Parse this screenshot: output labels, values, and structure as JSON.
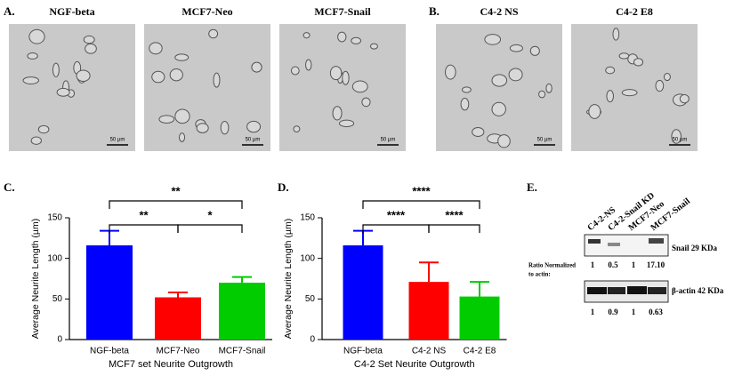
{
  "figure": {
    "panel_a": "A.",
    "panel_b": "B.",
    "panel_c": "C.",
    "panel_d": "D.",
    "panel_e": "E.",
    "images": [
      "NGF-beta",
      "MCF7-Neo",
      "MCF7-Snail",
      "C4-2 NS",
      "C4-2 E8"
    ],
    "scale_bar": "50 µm",
    "blot": {
      "lanes": [
        "C4-2-NS",
        "C4-2-Snail KD",
        "MCF7-Neo",
        "MCF7-Snail"
      ],
      "snail_label": "Snail 29 KDa",
      "actin_label": "β-actin 42 KDa",
      "ratio_label": [
        "Ratio Normalized",
        "to actin:"
      ],
      "snail_ratios": [
        "1",
        "0.5",
        "1",
        "17.10"
      ],
      "actin_ratios": [
        "1",
        "0.9",
        "1",
        "0.63"
      ]
    }
  },
  "chart_data": [
    {
      "type": "bar",
      "xlabel": "MCF7 set Neurite Outgrowth",
      "ylabel": "Average Neurite Length (µm)",
      "categories": [
        "NGF-beta",
        "MCF7-Neo",
        "MCF7-Snail"
      ],
      "values": [
        116,
        52,
        70
      ],
      "errors": [
        18,
        6,
        7
      ],
      "colors": [
        "#0000ff",
        "#ff0000",
        "#00cc00"
      ],
      "ylim": [
        0,
        150
      ],
      "yticks": [
        0,
        50,
        100,
        150
      ],
      "annotations": [
        "**",
        "**",
        "*"
      ]
    },
    {
      "type": "bar",
      "xlabel": "C4-2 Set Neurite Outgrowth",
      "ylabel": "Average Neurite Length (µm)",
      "categories": [
        "NGF-beta",
        "C4-2 NS",
        "C4-2 E8"
      ],
      "values": [
        116,
        71,
        53
      ],
      "errors": [
        18,
        24,
        18
      ],
      "colors": [
        "#0000ff",
        "#ff0000",
        "#00cc00"
      ],
      "ylim": [
        0,
        150
      ],
      "yticks": [
        0,
        50,
        100,
        150
      ],
      "annotations": [
        "****",
        "****",
        "****"
      ]
    }
  ]
}
